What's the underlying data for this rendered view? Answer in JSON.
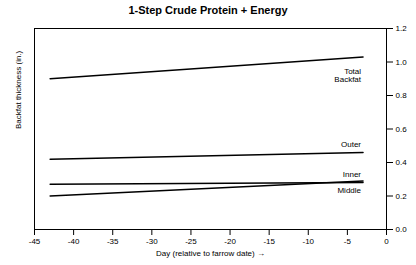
{
  "chart_data": {
    "type": "line",
    "title": "1-Step Crude Protein + Energy",
    "x_label": "Day (relative to farrow date)",
    "y_label": "Backfat thickness (in.)",
    "x": [
      -43,
      -3
    ],
    "series": [
      {
        "name": "Total Backfat",
        "color": "#000000",
        "values": [
          0.9,
          1.03
        ]
      },
      {
        "name": "Outer",
        "color": "#000000",
        "values": [
          0.42,
          0.46
        ]
      },
      {
        "name": "Inner",
        "color": "#000000",
        "values": [
          0.27,
          0.28
        ]
      },
      {
        "name": "Middle",
        "color": "#000000",
        "values": [
          0.2,
          0.29
        ]
      }
    ],
    "xlim": [
      -45,
      0
    ],
    "xticks": [
      -45,
      -40,
      -35,
      -30,
      -25,
      -20,
      -15,
      -10,
      -5,
      0
    ],
    "ylim": [
      0,
      1.2
    ],
    "yticks": [
      {
        "value": 0,
        "label": "0.0"
      },
      0.2,
      0.4,
      0.6,
      0.8,
      {
        "value": 1,
        "label": "1.0"
      },
      1.2
    ],
    "grid": false
  }
}
